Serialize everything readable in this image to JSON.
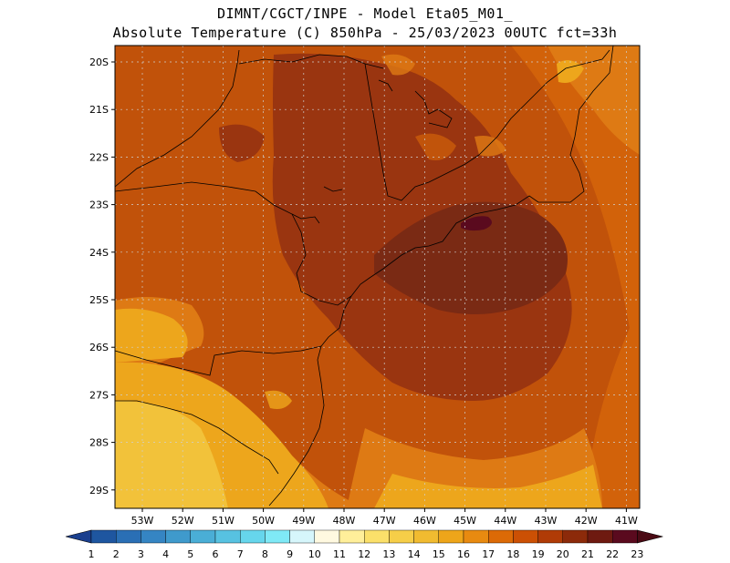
{
  "title_line1": "DIMNT/CGCT/INPE -  Model Eta05_M01_",
  "title_line2": "Absolute Temperature (C) 850hPa -  25/03/2023 00UTC fct=33h",
  "lat_labels": [
    "20S",
    "21S",
    "22S",
    "23S",
    "24S",
    "25S",
    "26S",
    "27S",
    "28S",
    "29S"
  ],
  "lon_labels": [
    "53W",
    "52W",
    "51W",
    "50W",
    "49W",
    "48W",
    "47W",
    "46W",
    "45W",
    "44W",
    "43W",
    "42W",
    "41W"
  ],
  "colorbar": {
    "labels": [
      "1",
      "2",
      "3",
      "4",
      "5",
      "6",
      "7",
      "8",
      "9",
      "10",
      "11",
      "12",
      "13",
      "14",
      "15",
      "16",
      "17",
      "18",
      "19",
      "20",
      "21",
      "22",
      "23"
    ],
    "colors": [
      "#1a3f8e",
      "#1e56a0",
      "#2a6fb5",
      "#3585c3",
      "#3f9acc",
      "#4aaed6",
      "#57c2e1",
      "#66d6ec",
      "#7fe9f6",
      "#d6f6fb",
      "#fff9e0",
      "#ffef9a",
      "#fbe06a",
      "#f6ce48",
      "#f1bb30",
      "#eea51a",
      "#e88a10",
      "#dc6a06",
      "#cc5004",
      "#b03b06",
      "#8c2a0a",
      "#6e1a10",
      "#5a0a1e"
    ],
    "low_end_color": "#1a3f8e",
    "high_end_color": "#4a0a14"
  },
  "colors": {
    "hot": "#7a2a14",
    "dark_orange": "#9a3510",
    "orange": "#c1520a",
    "light_orange": "#de7a14",
    "amber": "#eda61c",
    "yellow": "#f2c23a"
  }
}
